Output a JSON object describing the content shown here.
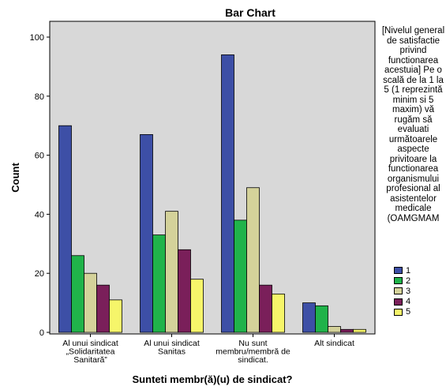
{
  "chart_data": {
    "type": "bar",
    "title": "Bar Chart",
    "xlabel": "Sunteti membr(ă)(u) de sindicat?",
    "ylabel": "Count",
    "ylim": [
      0,
      100
    ],
    "yticks": [
      0,
      20,
      40,
      60,
      80,
      100
    ],
    "grid": false,
    "categories": [
      [
        "Al unui sindicat",
        "„Solidaritatea",
        "Sanitară”"
      ],
      [
        "Al unui sindicat",
        "Sanitas"
      ],
      [
        "Nu sunt",
        "membru/membră de",
        "sindicat."
      ],
      [
        "Alt sindicat"
      ]
    ],
    "series": [
      {
        "name": "1",
        "color": "#3d4fa6",
        "values": [
          70,
          67,
          94,
          10
        ]
      },
      {
        "name": "2",
        "color": "#20b34a",
        "values": [
          26,
          33,
          38,
          9
        ]
      },
      {
        "name": "3",
        "color": "#d4d29a",
        "values": [
          20,
          41,
          49,
          2
        ]
      },
      {
        "name": "4",
        "color": "#7a1f5a",
        "values": [
          16,
          28,
          16,
          1
        ]
      },
      {
        "name": "5",
        "color": "#f6f56a",
        "values": [
          11,
          18,
          13,
          1
        ]
      }
    ],
    "legend": {
      "title": "[Nivelul general de satisfactie privind functionarea acestuia] Pe o scală de la 1 la 5 (1 reprezintă minim si 5 maxim) vă rugăm să evaluati următoarele aspecte privitoare la functionarea organismului profesional al asistentelor medicale (OAMGMAM",
      "placement": "right"
    },
    "plot_background": "#d8d8d8"
  }
}
